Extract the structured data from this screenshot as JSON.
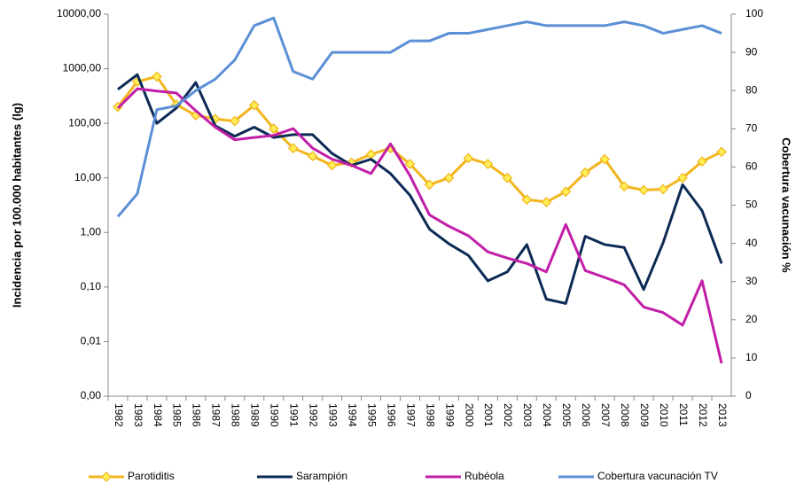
{
  "chart_data": {
    "type": "line",
    "y_label": "Incidencia  por 100.000 habitantes (lg)",
    "y2_label": "Cobertura  vacunación  %",
    "categories": [
      "1982",
      "1983",
      "1984",
      "1985",
      "1986",
      "1987",
      "1988",
      "1989",
      "1990",
      "1991",
      "1992",
      "1993",
      "1994",
      "1995",
      "1996",
      "1997",
      "1998",
      "1999",
      "2000",
      "2001",
      "2002",
      "2003",
      "2004",
      "2005",
      "2006",
      "2007",
      "2008",
      "2009",
      "2010",
      "2011",
      "2012",
      "2013"
    ],
    "ylim": [
      0.001,
      10000
    ],
    "log_y": true,
    "yticks": [
      {
        "value": 0.001,
        "label": "0,00"
      },
      {
        "value": 0.01,
        "label": "0,01"
      },
      {
        "value": 0.1,
        "label": "0,10"
      },
      {
        "value": 1,
        "label": "1,00"
      },
      {
        "value": 10,
        "label": "10,00"
      },
      {
        "value": 100,
        "label": "100,00"
      },
      {
        "value": 1000,
        "label": "1000,00"
      },
      {
        "value": 10000,
        "label": "10000,00"
      }
    ],
    "y2lim": [
      0,
      100
    ],
    "y2ticks": [
      0,
      10,
      20,
      30,
      40,
      50,
      60,
      70,
      80,
      90,
      100
    ],
    "grid": false,
    "legend": "bottom",
    "series": [
      {
        "name": "Parotiditis",
        "color": "#f2b51d",
        "marker": "diamond",
        "values": [
          200,
          580,
          720,
          220,
          140,
          120,
          110,
          215,
          80,
          35,
          25,
          17,
          19,
          27,
          35,
          18,
          7.5,
          10,
          23,
          18,
          10,
          4,
          3.6,
          5.6,
          12.5,
          22,
          7,
          6,
          6.2,
          10,
          20,
          30
        ]
      },
      {
        "name": "Sarampión",
        "color": "#0c2a55",
        "values": [
          420,
          780,
          100,
          190,
          560,
          90,
          58,
          85,
          55,
          62,
          62,
          28,
          17,
          22,
          12,
          4.8,
          1.15,
          0.62,
          0.38,
          0.13,
          0.19,
          0.6,
          0.06,
          0.05,
          0.85,
          0.6,
          0.53,
          0.09,
          0.65,
          7.5,
          2.5,
          0.27
        ]
      },
      {
        "name": "Rubéola",
        "color": "#c21ea8",
        "values": [
          190,
          430,
          390,
          360,
          170,
          85,
          50,
          55,
          60,
          80,
          35,
          22,
          17,
          12,
          42,
          11,
          2.1,
          1.3,
          0.87,
          0.44,
          0.34,
          0.27,
          0.19,
          1.4,
          0.2,
          0.15,
          0.11,
          0.043,
          0.034,
          0.02,
          0.13,
          0.004
        ]
      },
      {
        "name": "Cobertura vacunación TV",
        "color": "#5b8fd6",
        "axis": "y2",
        "values": [
          47,
          53,
          75,
          76,
          80,
          83,
          88,
          97,
          99,
          85,
          83,
          90,
          90,
          90,
          90,
          93,
          93,
          95,
          95,
          96,
          97,
          98,
          97,
          97,
          97,
          97,
          98,
          97,
          95,
          96,
          97,
          95
        ]
      }
    ]
  }
}
